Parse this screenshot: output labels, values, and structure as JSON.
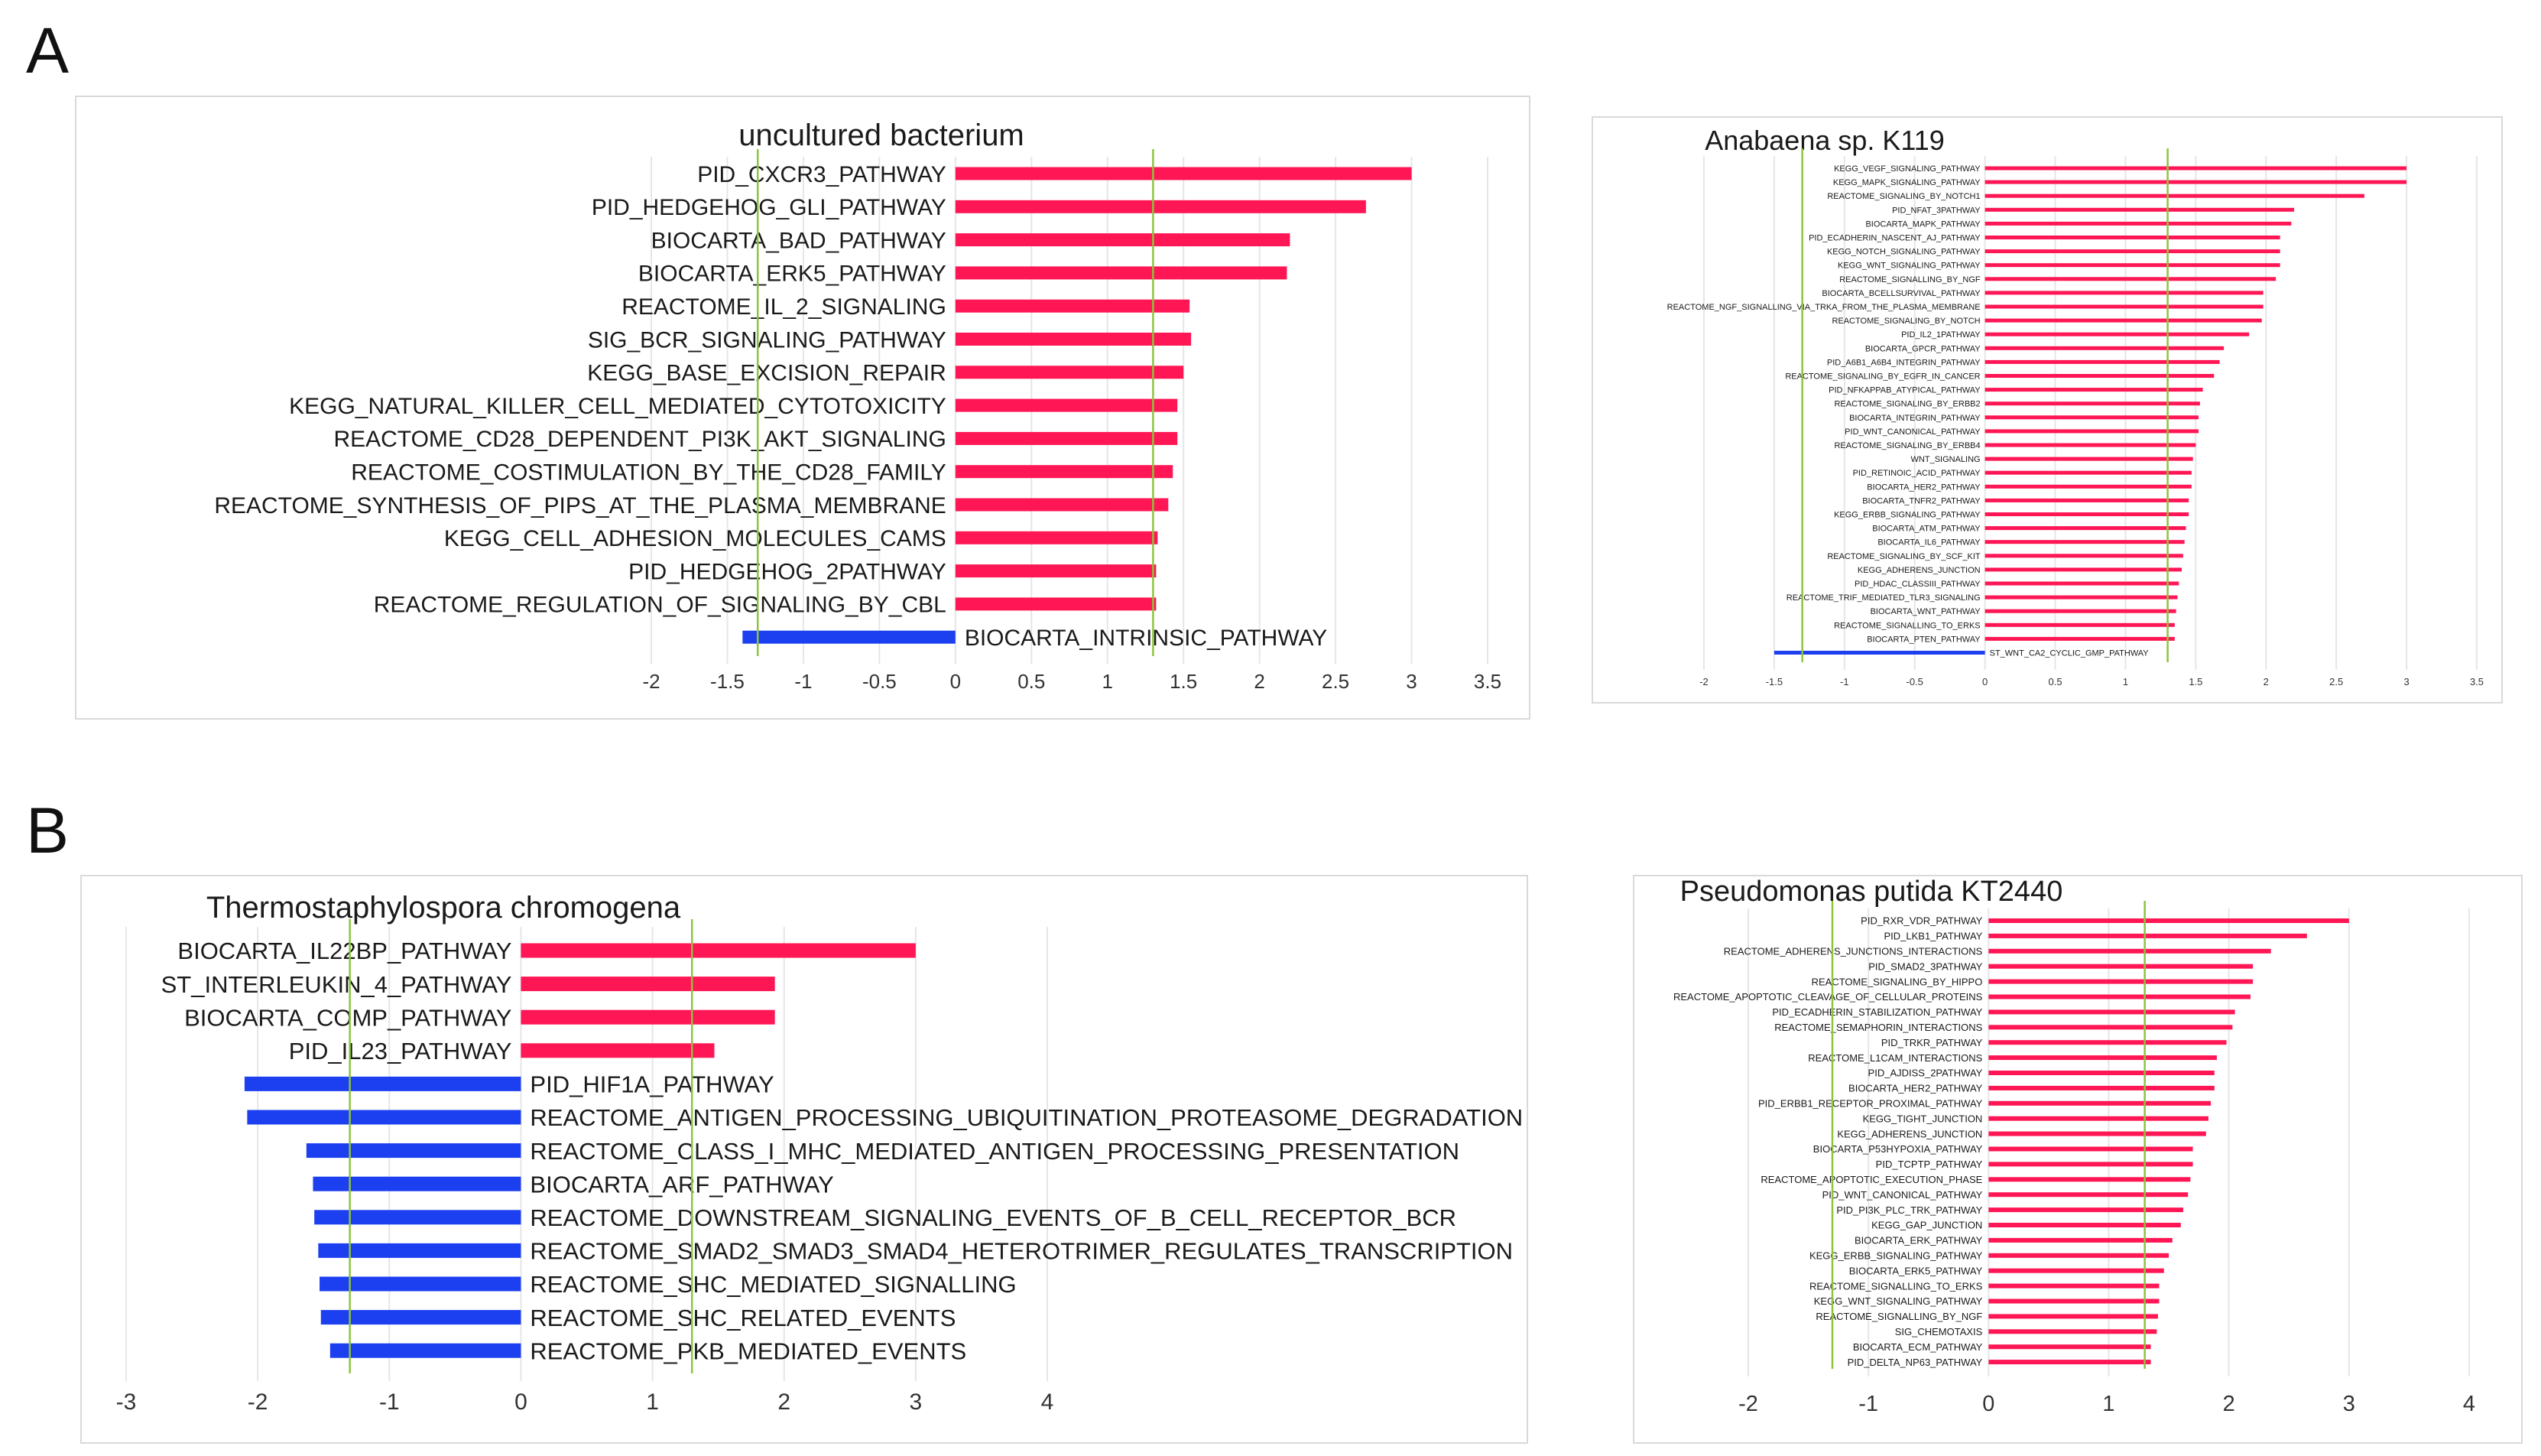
{
  "panels": {
    "a": "A",
    "b": "B"
  },
  "colors": {
    "positive": "#ff1654",
    "negative": "#1c3ff0",
    "threshold": "#8dc43f",
    "grid": "#e6e6e6",
    "text": "#1a1a1a"
  },
  "chart_data": [
    {
      "type": "bar",
      "orientation": "horizontal",
      "title": "uncultured bacterium",
      "categories": [
        "PID_CXCR3_PATHWAY",
        "PID_HEDGEHOG_GLI_PATHWAY",
        "BIOCARTA_BAD_PATHWAY",
        "BIOCARTA_ERK5_PATHWAY",
        "REACTOME_IL_2_SIGNALING",
        "SIG_BCR_SIGNALING_PATHWAY",
        "KEGG_BASE_EXCISION_REPAIR",
        "KEGG_NATURAL_KILLER_CELL_MEDIATED_CYTOTOXICITY",
        "REACTOME_CD28_DEPENDENT_PI3K_AKT_SIGNALING",
        "REACTOME_COSTIMULATION_BY_THE_CD28_FAMILY",
        "REACTOME_SYNTHESIS_OF_PIPS_AT_THE_PLASMA_MEMBRANE",
        "KEGG_CELL_ADHESION_MOLECULES_CAMS",
        "PID_HEDGEHOG_2PATHWAY",
        "REACTOME_REGULATION_OF_SIGNALING_BY_CBL",
        "BIOCARTA_INTRINSIC_PATHWAY"
      ],
      "values": [
        3.0,
        2.7,
        2.2,
        2.18,
        1.54,
        1.55,
        1.5,
        1.46,
        1.46,
        1.43,
        1.4,
        1.33,
        1.32,
        1.32,
        -1.4
      ],
      "xticks": [
        "-2",
        "-1.5",
        "-1",
        "-0.5",
        "0",
        "0.5",
        "1",
        "1.5",
        "2",
        "2.5",
        "3",
        "3.5"
      ],
      "xlim": [
        -2.0,
        3.5
      ],
      "threshold_lines": [
        -1.3,
        1.3
      ]
    },
    {
      "type": "bar",
      "orientation": "horizontal",
      "title": "Anabaena sp. K119",
      "categories": [
        "KEGG_VEGF_SIGNALING_PATHWAY",
        "KEGG_MAPK_SIGNALING_PATHWAY",
        "REACTOME_SIGNALING_BY_NOTCH1",
        "PID_NFAT_3PATHWAY",
        "BIOCARTA_MAPK_PATHWAY",
        "PID_ECADHERIN_NASCENT_AJ_PATHWAY",
        "KEGG_NOTCH_SIGNALING_PATHWAY",
        "KEGG_WNT_SIGNALING_PATHWAY",
        "REACTOME_SIGNALLING_BY_NGF",
        "BIOCARTA_BCELLSURVIVAL_PATHWAY",
        "REACTOME_NGF_SIGNALLING_VIA_TRKA_FROM_THE_PLASMA_MEMBRANE",
        "REACTOME_SIGNALING_BY_NOTCH",
        "PID_IL2_1PATHWAY",
        "BIOCARTA_GPCR_PATHWAY",
        "PID_A6B1_A6B4_INTEGRIN_PATHWAY",
        "REACTOME_SIGNALING_BY_EGFR_IN_CANCER",
        "PID_NFKAPPAB_ATYPICAL_PATHWAY",
        "REACTOME_SIGNALING_BY_ERBB2",
        "BIOCARTA_INTEGRIN_PATHWAY",
        "PID_WNT_CANONICAL_PATHWAY",
        "REACTOME_SIGNALING_BY_ERBB4",
        "WNT_SIGNALING",
        "PID_RETINOIC_ACID_PATHWAY",
        "BIOCARTA_HER2_PATHWAY",
        "BIOCARTA_TNFR2_PATHWAY",
        "KEGG_ERBB_SIGNALING_PATHWAY",
        "BIOCARTA_ATM_PATHWAY",
        "BIOCARTA_IL6_PATHWAY",
        "REACTOME_SIGNALING_BY_SCF_KIT",
        "KEGG_ADHERENS_JUNCTION",
        "PID_HDAC_CLASSIII_PATHWAY",
        "REACTOME_TRIF_MEDIATED_TLR3_SIGNALING",
        "BIOCARTA_WNT_PATHWAY",
        "REACTOME_SIGNALLING_TO_ERKS",
        "BIOCARTA_PTEN_PATHWAY",
        "ST_WNT_CA2_CYCLIC_GMP_PATHWAY"
      ],
      "values": [
        3.0,
        3.0,
        2.7,
        2.2,
        2.18,
        2.1,
        2.1,
        2.1,
        2.07,
        1.98,
        1.98,
        1.97,
        1.88,
        1.7,
        1.67,
        1.63,
        1.55,
        1.53,
        1.52,
        1.52,
        1.5,
        1.48,
        1.47,
        1.47,
        1.45,
        1.45,
        1.43,
        1.42,
        1.41,
        1.4,
        1.38,
        1.37,
        1.36,
        1.35,
        1.35,
        -1.5
      ],
      "xticks": [
        "-2",
        "-1.5",
        "-1",
        "-0.5",
        "0",
        "0.5",
        "1",
        "1.5",
        "2",
        "2.5",
        "3",
        "3.5"
      ],
      "xlim": [
        -2.0,
        3.5
      ],
      "threshold_lines": [
        -1.3,
        1.3
      ]
    },
    {
      "type": "bar",
      "orientation": "horizontal",
      "title": "Thermostaphylospora chromogena",
      "categories": [
        "BIOCARTA_IL22BP_PATHWAY",
        "ST_INTERLEUKIN_4_PATHWAY",
        "BIOCARTA_COMP_PATHWAY",
        "PID_IL23_PATHWAY",
        "PID_HIF1A_PATHWAY",
        "REACTOME_ANTIGEN_PROCESSING_UBIQUITINATION_PROTEASOME_DEGRADATION",
        "REACTOME_CLASS_I_MHC_MEDIATED_ANTIGEN_PROCESSING_PRESENTATION",
        "BIOCARTA_ARF_PATHWAY",
        "REACTOME_DOWNSTREAM_SIGNALING_EVENTS_OF_B_CELL_RECEPTOR_BCR",
        "REACTOME_SMAD2_SMAD3_SMAD4_HETEROTRIMER_REGULATES_TRANSCRIPTION",
        "REACTOME_SHC_MEDIATED_SIGNALLING",
        "REACTOME_SHC_RELATED_EVENTS",
        "REACTOME_PKB_MEDIATED_EVENTS"
      ],
      "values": [
        3.0,
        1.93,
        1.93,
        1.47,
        -2.1,
        -2.08,
        -1.63,
        -1.58,
        -1.57,
        -1.54,
        -1.53,
        -1.52,
        -1.45
      ],
      "xticks": [
        "-3",
        "-2",
        "-1",
        "0",
        "1",
        "2",
        "3",
        "4"
      ],
      "xlim": [
        -3.0,
        4.0
      ],
      "threshold_lines": [
        -1.3,
        1.3
      ]
    },
    {
      "type": "bar",
      "orientation": "horizontal",
      "title": "Pseudomonas putida KT2440",
      "categories": [
        "PID_RXR_VDR_PATHWAY",
        "PID_LKB1_PATHWAY",
        "REACTOME_ADHERENS_JUNCTIONS_INTERACTIONS",
        "PID_SMAD2_3PATHWAY",
        "REACTOME_SIGNALING_BY_HIPPO",
        "REACTOME_APOPTOTIC_CLEAVAGE_OF_CELLULAR_PROTEINS",
        "PID_ECADHERIN_STABILIZATION_PATHWAY",
        "REACTOME_SEMAPHORIN_INTERACTIONS",
        "PID_TRKR_PATHWAY",
        "REACTOME_L1CAM_INTERACTIONS",
        "PID_AJDISS_2PATHWAY",
        "BIOCARTA_HER2_PATHWAY",
        "PID_ERBB1_RECEPTOR_PROXIMAL_PATHWAY",
        "KEGG_TIGHT_JUNCTION",
        "KEGG_ADHERENS_JUNCTION",
        "BIOCARTA_P53HYPOXIA_PATHWAY",
        "PID_TCPTP_PATHWAY",
        "REACTOME_APOPTOTIC_EXECUTION_PHASE",
        "PID_WNT_CANONICAL_PATHWAY",
        "PID_PI3K_PLC_TRK_PATHWAY",
        "KEGG_GAP_JUNCTION",
        "BIOCARTA_ERK_PATHWAY",
        "KEGG_ERBB_SIGNALING_PATHWAY",
        "BIOCARTA_ERK5_PATHWAY",
        "REACTOME_SIGNALLING_TO_ERKS",
        "KEGG_WNT_SIGNALING_PATHWAY",
        "REACTOME_SIGNALLING_BY_NGF",
        "SIG_CHEMOTAXIS",
        "BIOCARTA_ECM_PATHWAY",
        "PID_DELTA_NP63_PATHWAY"
      ],
      "values": [
        3.0,
        2.65,
        2.35,
        2.2,
        2.2,
        2.18,
        2.05,
        2.03,
        1.98,
        1.9,
        1.88,
        1.88,
        1.85,
        1.83,
        1.81,
        1.7,
        1.7,
        1.68,
        1.66,
        1.62,
        1.6,
        1.53,
        1.5,
        1.46,
        1.42,
        1.42,
        1.41,
        1.4,
        1.35,
        1.35
      ],
      "xticks": [
        "-2",
        "-1",
        "0",
        "1",
        "2",
        "3",
        "4"
      ],
      "xlim": [
        -2.0,
        4.0
      ],
      "threshold_lines": [
        -1.3,
        1.3
      ]
    }
  ]
}
